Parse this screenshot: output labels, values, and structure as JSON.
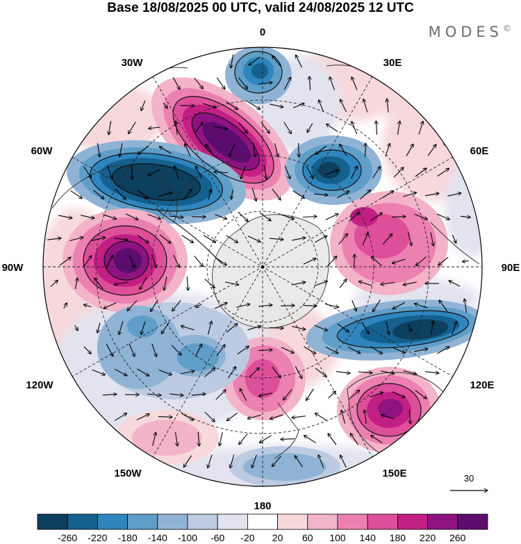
{
  "title": "Base 18/08/2025 00 UTC, valid 24/08/2025 12 UTC",
  "brand": "MODES",
  "brand_mark": "©",
  "meridians": {
    "0": "0",
    "30e": "30E",
    "60e": "60E",
    "90e": "90E",
    "120e": "120E",
    "150e": "150E",
    "180": "180",
    "150w": "150W",
    "120w": "120W",
    "90w": "90W",
    "60w": "60W",
    "30w": "30W"
  },
  "vector_scale": {
    "value": "30"
  },
  "colorbar": {
    "ticks": [
      "-260",
      "-220",
      "-180",
      "-140",
      "-100",
      "-60",
      "-20",
      "20",
      "60",
      "100",
      "140",
      "180",
      "220",
      "260"
    ],
    "colors": [
      "#0d3f5e",
      "#14608e",
      "#2f85bd",
      "#5f9ec9",
      "#8fb3d4",
      "#bccbe2",
      "#e2e3ef",
      "#ffffff",
      "#f7d8db",
      "#f3b3c9",
      "#ec80b1",
      "#de4f9a",
      "#c21f85",
      "#8e1380",
      "#5b0d6e"
    ]
  },
  "colors": {
    "ocean_neutral": "#ffffff",
    "coast": "#333333",
    "antarctica_fill": "#e8e8e8"
  }
}
